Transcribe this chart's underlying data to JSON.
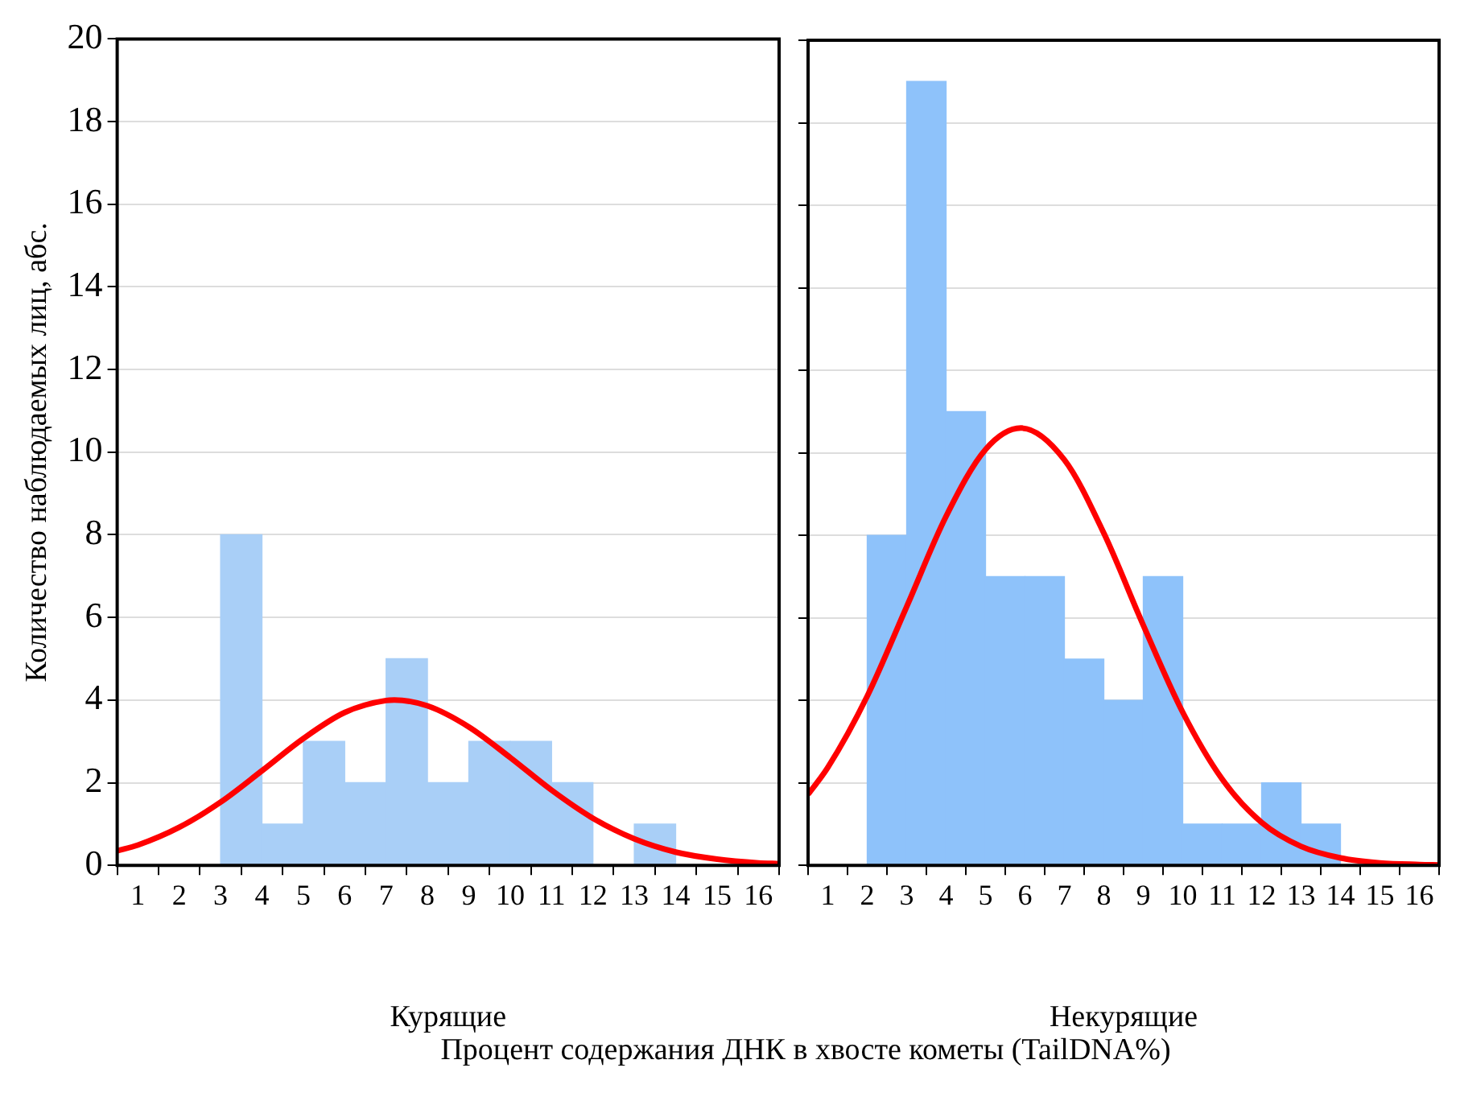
{
  "chart_data": [
    {
      "type": "histogram",
      "xlabel": "Курящие",
      "ylabel": "Количество наблюдаемых лиц, абс.",
      "xlim": [
        0.5,
        16.5
      ],
      "xticks": [
        1,
        2,
        3,
        4,
        5,
        6,
        7,
        8,
        9,
        10,
        11,
        12,
        13,
        14,
        15,
        16
      ],
      "ylim": [
        0,
        20
      ],
      "yticks": [
        0,
        2,
        4,
        6,
        8,
        10,
        12,
        14,
        16,
        18,
        20
      ],
      "grid": "y",
      "series": [
        {
          "color": "#a9cff7",
          "bins": [
            3,
            4,
            5,
            6,
            7,
            8,
            9,
            10,
            11,
            12,
            13,
            14
          ],
          "values": [
            8,
            1,
            3,
            2,
            5,
            2,
            3,
            3,
            2,
            0,
            1
          ]
        },
        {
          "type": "line",
          "color": "#ff0000",
          "x": [
            0.5,
            1,
            2,
            3,
            4,
            5,
            6,
            7,
            7.2,
            8,
            9,
            10,
            11,
            12,
            13,
            14,
            15,
            16,
            16.5
          ],
          "values": [
            0.35,
            0.49,
            0.92,
            1.53,
            2.29,
            3.07,
            3.7,
            3.99,
            4,
            3.86,
            3.35,
            2.61,
            1.82,
            1.14,
            0.64,
            0.32,
            0.15,
            0.06,
            0.04
          ]
        }
      ]
    },
    {
      "type": "histogram",
      "xlabel": "Некурящие",
      "xlim": [
        0.5,
        16.5
      ],
      "xticks": [
        1,
        2,
        3,
        4,
        5,
        6,
        7,
        8,
        9,
        10,
        11,
        12,
        13,
        14,
        15,
        16
      ],
      "ylim": [
        0,
        20
      ],
      "yticks": [
        0,
        2,
        4,
        6,
        8,
        10,
        12,
        14,
        16,
        18,
        20
      ],
      "grid": "y",
      "tick_labels": "x",
      "annotations": [
        "Процент содержания ДНК в хвосте кометы (TailDNA%)"
      ],
      "series": [
        {
          "color": "#8ec2fa",
          "bins": [
            2,
            3,
            4,
            5,
            6,
            7,
            8,
            9,
            10,
            11,
            12,
            13,
            14
          ],
          "values": [
            8,
            19,
            11,
            7,
            7,
            5,
            4,
            7,
            1,
            1,
            2,
            1
          ]
        },
        {
          "type": "line",
          "color": "#ff0000",
          "x": [
            0.5,
            1,
            2,
            3,
            4,
            5,
            5.9,
            7,
            8,
            9,
            10,
            11,
            12,
            13,
            14,
            15,
            16,
            16.5
          ],
          "values": [
            1.72,
            2.37,
            4.1,
            6.27,
            8.46,
            10.08,
            10.6,
            9.83,
            8.05,
            5.82,
            3.71,
            2.09,
            1.04,
            0.46,
            0.18,
            0.06,
            0.02,
            0.01
          ]
        }
      ]
    }
  ]
}
